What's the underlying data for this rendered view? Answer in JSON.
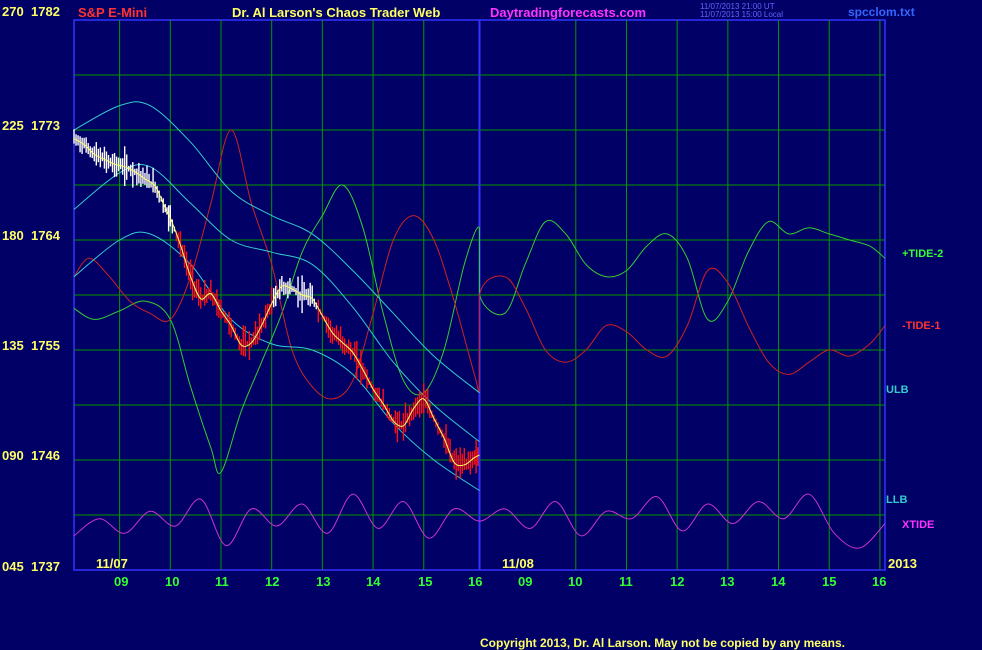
{
  "header": {
    "instrument": "S&P E-Mini",
    "title": "Dr. Al Larson's Chaos Trader Web",
    "site": "Daytradingforecasts.com",
    "timestamp_ut": "11/07/2013 21:00 UT",
    "timestamp_local": "11/07/2013 15:00 Local",
    "file": "spcclom.txt"
  },
  "footer": {
    "copyright": "Copyright 2013, Dr. Al Larson. May not be copied by any means."
  },
  "series_labels": {
    "tide2": "+TIDE-2",
    "tide1": "-TIDE-1",
    "ulb": "ULB",
    "llb": "LLB",
    "xtide": "XTIDE"
  },
  "date_labels": {
    "first": "11/07",
    "second": "11/08",
    "year": "2013"
  },
  "colors": {
    "background": "#000066",
    "grid": "#009900",
    "divider": "#3333ff",
    "tide2": "#33cc33",
    "tide1": "#cc2222",
    "bands": "#33cccc",
    "price": "#ff1111",
    "price_early": "#ffffff",
    "avg": "#ffff66",
    "xtide": "#cc33cc",
    "ylabel": "#ffff66",
    "xlabel": "#33ff33",
    "instrument": "#ff3333",
    "title": "#ffff66",
    "site": "#ff33ff",
    "file": "#3366ff",
    "ulb": "#33cccc",
    "llb": "#33cccc"
  },
  "chart_data": {
    "type": "line",
    "title": "Dr. Al Larson's Chaos Trader Web",
    "y_ticks": [
      {
        "angle": "270",
        "price": "1782"
      },
      {
        "angle": "225",
        "price": "1773"
      },
      {
        "angle": "180",
        "price": "1764"
      },
      {
        "angle": "135",
        "price": "1755"
      },
      {
        "angle": "090",
        "price": "1746"
      },
      {
        "angle": "045",
        "price": "1737"
      }
    ],
    "ylim": [
      1737,
      1782
    ],
    "x_ticks_day1": [
      "09",
      "10",
      "11",
      "12",
      "13",
      "14",
      "15",
      "16"
    ],
    "x_ticks_day2": [
      "09",
      "10",
      "11",
      "12",
      "13",
      "14",
      "15",
      "16"
    ],
    "xlim_hours": [
      8.1,
      24.1
    ],
    "grid": true,
    "price_series": [
      [
        8.1,
        1772.3
      ],
      [
        8.3,
        1771.8
      ],
      [
        8.5,
        1771.0
      ],
      [
        8.7,
        1770.6
      ],
      [
        8.9,
        1770.2
      ],
      [
        9.1,
        1770.0
      ],
      [
        9.3,
        1769.6
      ],
      [
        9.5,
        1769.0
      ],
      [
        9.7,
        1768.4
      ],
      [
        9.9,
        1766.6
      ],
      [
        10.0,
        1765.8
      ],
      [
        10.2,
        1763.6
      ],
      [
        10.4,
        1761.0
      ],
      [
        10.6,
        1759.2
      ],
      [
        10.8,
        1759.6
      ],
      [
        11.0,
        1758.2
      ],
      [
        11.2,
        1757.0
      ],
      [
        11.4,
        1755.4
      ],
      [
        11.6,
        1755.6
      ],
      [
        11.8,
        1757.0
      ],
      [
        12.0,
        1758.8
      ],
      [
        12.2,
        1760.2
      ],
      [
        12.4,
        1760.0
      ],
      [
        12.6,
        1759.5
      ],
      [
        12.8,
        1759.2
      ],
      [
        13.0,
        1757.8
      ],
      [
        13.2,
        1756.4
      ],
      [
        13.4,
        1755.6
      ],
      [
        13.6,
        1754.8
      ],
      [
        13.8,
        1753.4
      ],
      [
        14.0,
        1751.8
      ],
      [
        14.2,
        1750.6
      ],
      [
        14.4,
        1749.2
      ],
      [
        14.6,
        1748.8
      ],
      [
        14.8,
        1750.2
      ],
      [
        15.0,
        1751.0
      ],
      [
        15.2,
        1749.4
      ],
      [
        15.4,
        1747.8
      ],
      [
        15.6,
        1745.8
      ],
      [
        15.8,
        1745.6
      ],
      [
        16.0,
        1746.2
      ],
      [
        16.1,
        1746.4
      ]
    ],
    "series": [
      {
        "name": "+TIDE-2",
        "points": [
          [
            8.1,
            1758.4
          ],
          [
            8.5,
            1757.5
          ],
          [
            9.0,
            1758.2
          ],
          [
            9.5,
            1759.0
          ],
          [
            10.0,
            1757.5
          ],
          [
            10.4,
            1752.0
          ],
          [
            10.8,
            1747.0
          ],
          [
            11.0,
            1745.0
          ],
          [
            11.4,
            1750.0
          ],
          [
            11.8,
            1754.0
          ],
          [
            12.2,
            1758.0
          ],
          [
            12.6,
            1763.0
          ],
          [
            13.0,
            1766.0
          ],
          [
            13.4,
            1768.5
          ],
          [
            13.8,
            1765.0
          ],
          [
            14.2,
            1758.0
          ],
          [
            14.6,
            1752.5
          ],
          [
            15.0,
            1751.5
          ],
          [
            15.4,
            1755.0
          ],
          [
            15.8,
            1762.0
          ],
          [
            16.1,
            1765.0
          ],
          [
            16.1,
            1759.5
          ],
          [
            16.6,
            1758.0
          ],
          [
            17.0,
            1762.0
          ],
          [
            17.4,
            1765.5
          ],
          [
            17.8,
            1764.5
          ],
          [
            18.2,
            1762.0
          ],
          [
            18.6,
            1761.0
          ],
          [
            19.0,
            1761.5
          ],
          [
            19.4,
            1763.5
          ],
          [
            19.8,
            1764.5
          ],
          [
            20.2,
            1762.5
          ],
          [
            20.6,
            1757.5
          ],
          [
            21.0,
            1759.0
          ],
          [
            21.4,
            1763.0
          ],
          [
            21.8,
            1765.5
          ],
          [
            22.2,
            1764.5
          ],
          [
            22.6,
            1765.0
          ],
          [
            23.0,
            1764.5
          ],
          [
            23.4,
            1764.0
          ],
          [
            23.8,
            1763.5
          ],
          [
            24.1,
            1762.5
          ]
        ]
      },
      {
        "name": "-TIDE-1",
        "points": [
          [
            8.1,
            1761.0
          ],
          [
            8.4,
            1762.5
          ],
          [
            8.8,
            1761.0
          ],
          [
            9.2,
            1759.0
          ],
          [
            9.6,
            1758.0
          ],
          [
            10.0,
            1757.5
          ],
          [
            10.4,
            1761.0
          ],
          [
            10.8,
            1767.0
          ],
          [
            11.2,
            1773.0
          ],
          [
            11.6,
            1767.0
          ],
          [
            12.0,
            1762.0
          ],
          [
            12.4,
            1755.0
          ],
          [
            12.8,
            1752.0
          ],
          [
            13.2,
            1751.0
          ],
          [
            13.6,
            1752.5
          ],
          [
            14.0,
            1758.0
          ],
          [
            14.4,
            1764.0
          ],
          [
            14.8,
            1766.0
          ],
          [
            15.2,
            1764.0
          ],
          [
            15.6,
            1759.0
          ],
          [
            16.0,
            1753.0
          ],
          [
            16.1,
            1752.0
          ],
          [
            16.1,
            1759.5
          ],
          [
            16.6,
            1761.0
          ],
          [
            17.0,
            1758.5
          ],
          [
            17.4,
            1755.0
          ],
          [
            17.8,
            1754.0
          ],
          [
            18.2,
            1755.0
          ],
          [
            18.6,
            1757.0
          ],
          [
            19.0,
            1756.5
          ],
          [
            19.4,
            1755.0
          ],
          [
            19.8,
            1754.5
          ],
          [
            20.2,
            1757.0
          ],
          [
            20.6,
            1761.5
          ],
          [
            21.0,
            1760.5
          ],
          [
            21.4,
            1757.0
          ],
          [
            21.8,
            1754.0
          ],
          [
            22.2,
            1753.0
          ],
          [
            22.6,
            1754.0
          ],
          [
            23.0,
            1755.0
          ],
          [
            23.4,
            1754.5
          ],
          [
            23.8,
            1755.5
          ],
          [
            24.1,
            1757.0
          ]
        ]
      },
      {
        "name": "Band upper",
        "points": [
          [
            8.1,
            1773.0
          ],
          [
            9.0,
            1775.0
          ],
          [
            9.6,
            1775.0
          ],
          [
            10.4,
            1772.0
          ],
          [
            11.2,
            1768.0
          ],
          [
            12.0,
            1766.0
          ],
          [
            12.8,
            1764.5
          ],
          [
            13.6,
            1761.5
          ],
          [
            14.4,
            1758.0
          ],
          [
            15.2,
            1754.5
          ],
          [
            16.1,
            1751.5
          ]
        ]
      },
      {
        "name": "Band mid",
        "points": [
          [
            8.1,
            1766.5
          ],
          [
            9.0,
            1769.5
          ],
          [
            9.6,
            1770.0
          ],
          [
            10.4,
            1767.0
          ],
          [
            11.2,
            1764.0
          ],
          [
            12.0,
            1763.0
          ],
          [
            12.8,
            1762.0
          ],
          [
            13.6,
            1758.5
          ],
          [
            14.4,
            1754.0
          ],
          [
            15.2,
            1750.5
          ],
          [
            16.1,
            1747.5
          ]
        ]
      },
      {
        "name": "Band lower",
        "points": [
          [
            8.1,
            1761.0
          ],
          [
            9.0,
            1764.0
          ],
          [
            9.6,
            1764.5
          ],
          [
            10.4,
            1762.0
          ],
          [
            11.2,
            1757.5
          ],
          [
            12.0,
            1755.5
          ],
          [
            12.8,
            1755.0
          ],
          [
            13.6,
            1753.0
          ],
          [
            14.4,
            1749.0
          ],
          [
            15.2,
            1746.0
          ],
          [
            16.1,
            1743.5
          ]
        ]
      },
      {
        "name": "XTIDE",
        "points": [
          [
            8.1,
            1739.8
          ],
          [
            8.6,
            1741.2
          ],
          [
            9.1,
            1740.0
          ],
          [
            9.6,
            1741.8
          ],
          [
            10.1,
            1740.6
          ],
          [
            10.6,
            1742.8
          ],
          [
            11.1,
            1739.0
          ],
          [
            11.6,
            1742.0
          ],
          [
            12.1,
            1740.6
          ],
          [
            12.6,
            1742.4
          ],
          [
            13.1,
            1740.0
          ],
          [
            13.6,
            1743.2
          ],
          [
            14.1,
            1740.4
          ],
          [
            14.6,
            1742.6
          ],
          [
            15.1,
            1739.6
          ],
          [
            15.6,
            1742.0
          ],
          [
            16.1,
            1741.0
          ],
          [
            16.6,
            1742.0
          ],
          [
            17.1,
            1740.4
          ],
          [
            17.6,
            1742.6
          ],
          [
            18.1,
            1739.8
          ],
          [
            18.6,
            1741.8
          ],
          [
            19.1,
            1741.2
          ],
          [
            19.6,
            1743.0
          ],
          [
            20.1,
            1740.2
          ],
          [
            20.6,
            1742.4
          ],
          [
            21.1,
            1740.8
          ],
          [
            21.6,
            1742.6
          ],
          [
            22.1,
            1741.2
          ],
          [
            22.6,
            1743.2
          ],
          [
            23.1,
            1740.0
          ],
          [
            23.6,
            1738.8
          ],
          [
            24.1,
            1740.8
          ]
        ]
      }
    ]
  }
}
